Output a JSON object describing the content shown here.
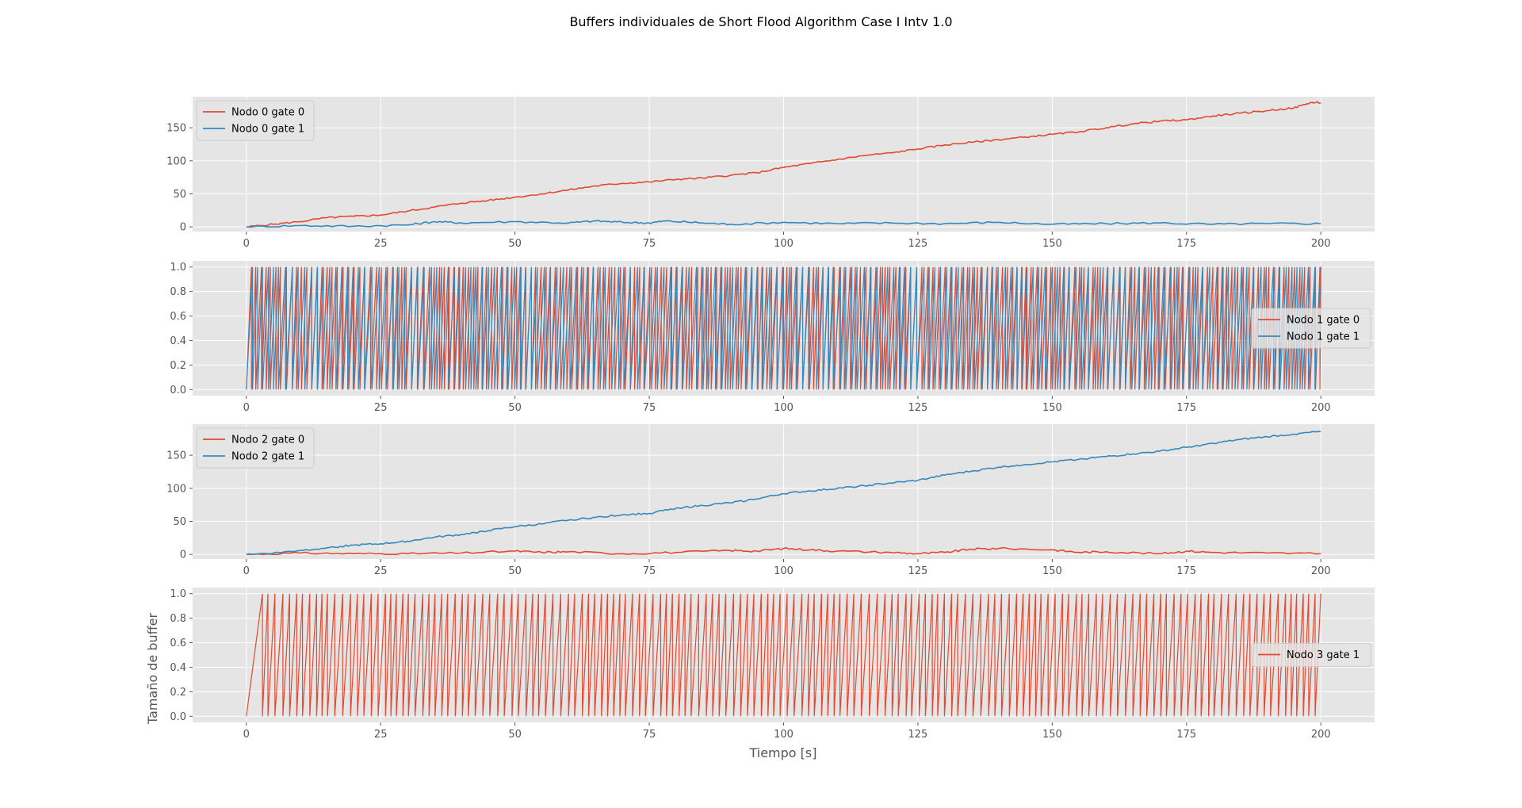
{
  "figure": {
    "title": "Buffers individuales de Short Flood Algorithm Case I Intv 1.0",
    "xlabel": "Tiempo [s]",
    "ylabel": "Tamaño de buffer"
  },
  "colors": {
    "red": "#e24a33",
    "blue": "#348abd",
    "axes_bg": "#e5e5e5"
  },
  "chart_data": [
    {
      "type": "line",
      "xlim": [
        -10,
        210
      ],
      "ylim": [
        -7,
        197
      ],
      "xticks": [
        0,
        25,
        50,
        75,
        100,
        125,
        150,
        175,
        200
      ],
      "yticks": [
        0,
        50,
        100,
        150
      ],
      "ytick_labels": [
        "0",
        "50",
        "100",
        "150"
      ],
      "legend_position": "upper left",
      "series": [
        {
          "name": "Nodo 0 gate 0",
          "color": "#e24a33",
          "kind": "ramp",
          "points": [
            [
              0,
              0
            ],
            [
              5,
              4
            ],
            [
              10,
              8
            ],
            [
              15,
              14
            ],
            [
              20,
              16
            ],
            [
              25,
              18
            ],
            [
              30,
              24
            ],
            [
              35,
              30
            ],
            [
              40,
              36
            ],
            [
              45,
              40
            ],
            [
              50,
              45
            ],
            [
              55,
              50
            ],
            [
              60,
              56
            ],
            [
              65,
              62
            ],
            [
              70,
              66
            ],
            [
              75,
              68
            ],
            [
              80,
              72
            ],
            [
              85,
              74
            ],
            [
              90,
              78
            ],
            [
              95,
              82
            ],
            [
              100,
              90
            ],
            [
              105,
              96
            ],
            [
              110,
              102
            ],
            [
              115,
              108
            ],
            [
              120,
              112
            ],
            [
              125,
              118
            ],
            [
              130,
              124
            ],
            [
              135,
              128
            ],
            [
              140,
              132
            ],
            [
              145,
              136
            ],
            [
              150,
              140
            ],
            [
              155,
              144
            ],
            [
              160,
              150
            ],
            [
              165,
              156
            ],
            [
              170,
              160
            ],
            [
              175,
              162
            ],
            [
              180,
              168
            ],
            [
              185,
              172
            ],
            [
              190,
              176
            ],
            [
              195,
              180
            ],
            [
              198,
              188
            ],
            [
              200,
              188
            ]
          ]
        },
        {
          "name": "Nodo 0 gate 1",
          "color": "#348abd",
          "kind": "noise",
          "points": [
            [
              0,
              0
            ],
            [
              10,
              2
            ],
            [
              20,
              1
            ],
            [
              30,
              3
            ],
            [
              35,
              8
            ],
            [
              40,
              6
            ],
            [
              50,
              8
            ],
            [
              60,
              6
            ],
            [
              65,
              9
            ],
            [
              70,
              7
            ],
            [
              75,
              6
            ],
            [
              78,
              9
            ],
            [
              85,
              6
            ],
            [
              90,
              4
            ],
            [
              100,
              7
            ],
            [
              110,
              5
            ],
            [
              120,
              6
            ],
            [
              130,
              5
            ],
            [
              140,
              7
            ],
            [
              150,
              4
            ],
            [
              160,
              5
            ],
            [
              170,
              6
            ],
            [
              180,
              4
            ],
            [
              190,
              5
            ],
            [
              200,
              5
            ]
          ]
        }
      ]
    },
    {
      "type": "line",
      "xlim": [
        -10,
        210
      ],
      "ylim": [
        -0.05,
        1.05
      ],
      "xticks": [
        0,
        25,
        50,
        75,
        100,
        125,
        150,
        175,
        200
      ],
      "yticks": [
        0.0,
        0.2,
        0.4,
        0.6,
        0.8,
        1.0
      ],
      "ytick_labels": [
        "0.0",
        "0.2",
        "0.4",
        "0.6",
        "0.8",
        "1.0"
      ],
      "legend_position": "center right",
      "series": [
        {
          "name": "Nodo 1 gate 0",
          "color": "#e24a33",
          "kind": "oscillation",
          "x_start": 0,
          "x_end": 200,
          "period_s": 0.95,
          "amplitude": [
            0,
            1
          ]
        },
        {
          "name": "Nodo 1 gate 1",
          "color": "#348abd",
          "kind": "oscillation",
          "x_start": 0,
          "x_end": 200,
          "period_s": 1.15,
          "amplitude": [
            0,
            1
          ]
        }
      ]
    },
    {
      "type": "line",
      "xlim": [
        -10,
        210
      ],
      "ylim": [
        -7,
        197
      ],
      "xticks": [
        0,
        25,
        50,
        75,
        100,
        125,
        150,
        175,
        200
      ],
      "yticks": [
        0,
        50,
        100,
        150
      ],
      "ytick_labels": [
        "0",
        "50",
        "100",
        "150"
      ],
      "legend_position": "upper left",
      "series": [
        {
          "name": "Nodo 2 gate 0",
          "color": "#e24a33",
          "kind": "noise",
          "points": [
            [
              0,
              0
            ],
            [
              10,
              2
            ],
            [
              20,
              1
            ],
            [
              30,
              1
            ],
            [
              40,
              2
            ],
            [
              50,
              5
            ],
            [
              55,
              3
            ],
            [
              60,
              4
            ],
            [
              70,
              1
            ],
            [
              80,
              3
            ],
            [
              90,
              6
            ],
            [
              95,
              5
            ],
            [
              100,
              9
            ],
            [
              105,
              7
            ],
            [
              110,
              5
            ],
            [
              120,
              3
            ],
            [
              125,
              1
            ],
            [
              130,
              3
            ],
            [
              135,
              8
            ],
            [
              140,
              9
            ],
            [
              150,
              7
            ],
            [
              155,
              3
            ],
            [
              160,
              4
            ],
            [
              170,
              1
            ],
            [
              175,
              5
            ],
            [
              180,
              3
            ],
            [
              190,
              2
            ],
            [
              200,
              1
            ]
          ]
        },
        {
          "name": "Nodo 2 gate 1",
          "color": "#348abd",
          "kind": "ramp",
          "points": [
            [
              0,
              0
            ],
            [
              5,
              2
            ],
            [
              10,
              6
            ],
            [
              15,
              10
            ],
            [
              20,
              14
            ],
            [
              25,
              16
            ],
            [
              30,
              20
            ],
            [
              35,
              26
            ],
            [
              40,
              30
            ],
            [
              45,
              36
            ],
            [
              50,
              42
            ],
            [
              55,
              46
            ],
            [
              60,
              52
            ],
            [
              65,
              56
            ],
            [
              70,
              60
            ],
            [
              75,
              62
            ],
            [
              80,
              70
            ],
            [
              85,
              74
            ],
            [
              90,
              78
            ],
            [
              95,
              84
            ],
            [
              100,
              92
            ],
            [
              105,
              96
            ],
            [
              110,
              100
            ],
            [
              115,
              104
            ],
            [
              120,
              108
            ],
            [
              125,
              112
            ],
            [
              130,
              120
            ],
            [
              135,
              126
            ],
            [
              140,
              132
            ],
            [
              145,
              136
            ],
            [
              150,
              140
            ],
            [
              155,
              144
            ],
            [
              160,
              148
            ],
            [
              165,
              152
            ],
            [
              170,
              156
            ],
            [
              175,
              162
            ],
            [
              180,
              168
            ],
            [
              185,
              174
            ],
            [
              190,
              178
            ],
            [
              195,
              182
            ],
            [
              200,
              186
            ]
          ]
        }
      ]
    },
    {
      "type": "line",
      "xlim": [
        -10,
        210
      ],
      "ylim": [
        -0.05,
        1.05
      ],
      "xticks": [
        0,
        25,
        50,
        75,
        100,
        125,
        150,
        175,
        200
      ],
      "yticks": [
        0.0,
        0.2,
        0.4,
        0.6,
        0.8,
        1.0
      ],
      "ytick_labels": [
        "0.0",
        "0.2",
        "0.4",
        "0.6",
        "0.8",
        "1.0"
      ],
      "legend_position": "center right",
      "series": [
        {
          "name": "Nodo 3 gate 1",
          "color": "#e24a33",
          "kind": "oscillation",
          "x_start": 0,
          "x_end": 200,
          "first_peak_x": 3,
          "period_s": 1.25,
          "amplitude": [
            0,
            1
          ]
        }
      ]
    }
  ]
}
